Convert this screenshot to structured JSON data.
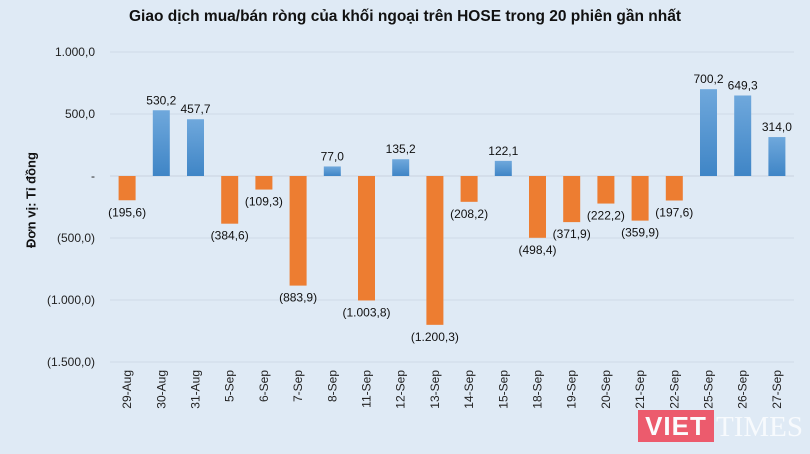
{
  "chart_data": {
    "type": "bar",
    "title": "Giao dịch mua/bán ròng của khối ngoại trên HOSE trong 20 phiên gần nhất",
    "ylabel": "Đơn vị: Tỉ đồng",
    "xlabel": "",
    "ylim": [
      -1500,
      1000
    ],
    "yticks": [
      1000,
      500,
      0,
      -500,
      -1000,
      -1500
    ],
    "ytick_labels": [
      "1.000,0",
      "500,0",
      "-",
      "(500,0)",
      "(1.000,0)",
      "(1.500,0)"
    ],
    "grid": true,
    "categories": [
      "29-Aug",
      "30-Aug",
      "31-Aug",
      "5-Sep",
      "6-Sep",
      "7-Sep",
      "8-Sep",
      "11-Sep",
      "12-Sep",
      "13-Sep",
      "14-Sep",
      "15-Sep",
      "18-Sep",
      "19-Sep",
      "20-Sep",
      "21-Sep",
      "22-Sep",
      "25-Sep",
      "26-Sep",
      "27-Sep"
    ],
    "values": [
      -195.6,
      530.2,
      457.7,
      -384.6,
      -109.3,
      -883.9,
      77.0,
      -1003.8,
      135.2,
      -1200.3,
      -208.2,
      122.1,
      -498.4,
      -371.9,
      -222.2,
      -359.9,
      -197.6,
      700.2,
      649.3,
      314.0
    ],
    "data_labels": [
      "(195,6)",
      "530,2",
      "457,7",
      "(384,6)",
      "(109,3)",
      "(883,9)",
      "77,0",
      "(1.003,8)",
      "135,2",
      "(1.200,3)",
      "(208,2)",
      "122,1",
      "(498,4)",
      "(371,9)",
      "(222,2)",
      "(359,9)",
      "(197,6)",
      "700,2",
      "649,3",
      "314,0"
    ],
    "colors": {
      "positive": "#5b9bd5",
      "negative": "#ed7d31",
      "background": "#dfeaf5"
    }
  },
  "watermark": {
    "brand": "VIETTIMES",
    "part1": "VIET",
    "part2": "TIMES"
  }
}
